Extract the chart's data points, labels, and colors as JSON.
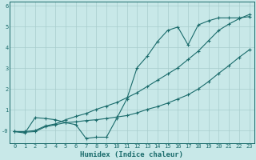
{
  "xlabel": "Humidex (Indice chaleur)",
  "bg_color": "#c8e8e8",
  "grid_color": "#a8cccc",
  "line_color": "#1a6b6b",
  "xlim": [
    -0.5,
    23.5
  ],
  "ylim": [
    -0.6,
    6.2
  ],
  "line1_x": [
    0,
    1,
    2,
    3,
    4,
    5,
    6,
    7,
    8,
    9,
    10,
    11,
    12,
    13,
    14,
    15,
    16,
    17,
    18,
    19,
    20,
    21,
    22,
    23
  ],
  "line1_y": [
    -0.05,
    -0.12,
    0.62,
    0.58,
    0.52,
    0.38,
    0.28,
    -0.38,
    -0.32,
    -0.32,
    0.58,
    1.52,
    3.02,
    3.58,
    4.28,
    4.82,
    4.98,
    4.12,
    5.08,
    5.28,
    5.42,
    5.42,
    5.42,
    5.48
  ],
  "line2_x": [
    0,
    1,
    2,
    3,
    4,
    5,
    6,
    7,
    8,
    9,
    10,
    11,
    12,
    13,
    14,
    15,
    16,
    17,
    18,
    19,
    20,
    21,
    22,
    23
  ],
  "line2_y": [
    -0.05,
    -0.08,
    -0.05,
    0.18,
    0.28,
    0.38,
    0.42,
    0.48,
    0.52,
    0.58,
    0.65,
    0.72,
    0.85,
    1.02,
    1.15,
    1.32,
    1.52,
    1.72,
    2.0,
    2.35,
    2.75,
    3.12,
    3.52,
    3.88
  ],
  "line3_x": [
    0,
    1,
    2,
    3,
    4,
    5,
    6,
    7,
    8,
    9,
    10,
    11,
    12,
    13,
    14,
    15,
    16,
    17,
    18,
    19,
    20,
    21,
    22,
    23
  ],
  "line3_y": [
    -0.05,
    -0.05,
    0.0,
    0.22,
    0.32,
    0.52,
    0.68,
    0.82,
    1.02,
    1.18,
    1.35,
    1.58,
    1.82,
    2.12,
    2.42,
    2.72,
    3.02,
    3.42,
    3.82,
    4.32,
    4.82,
    5.12,
    5.38,
    5.58
  ]
}
